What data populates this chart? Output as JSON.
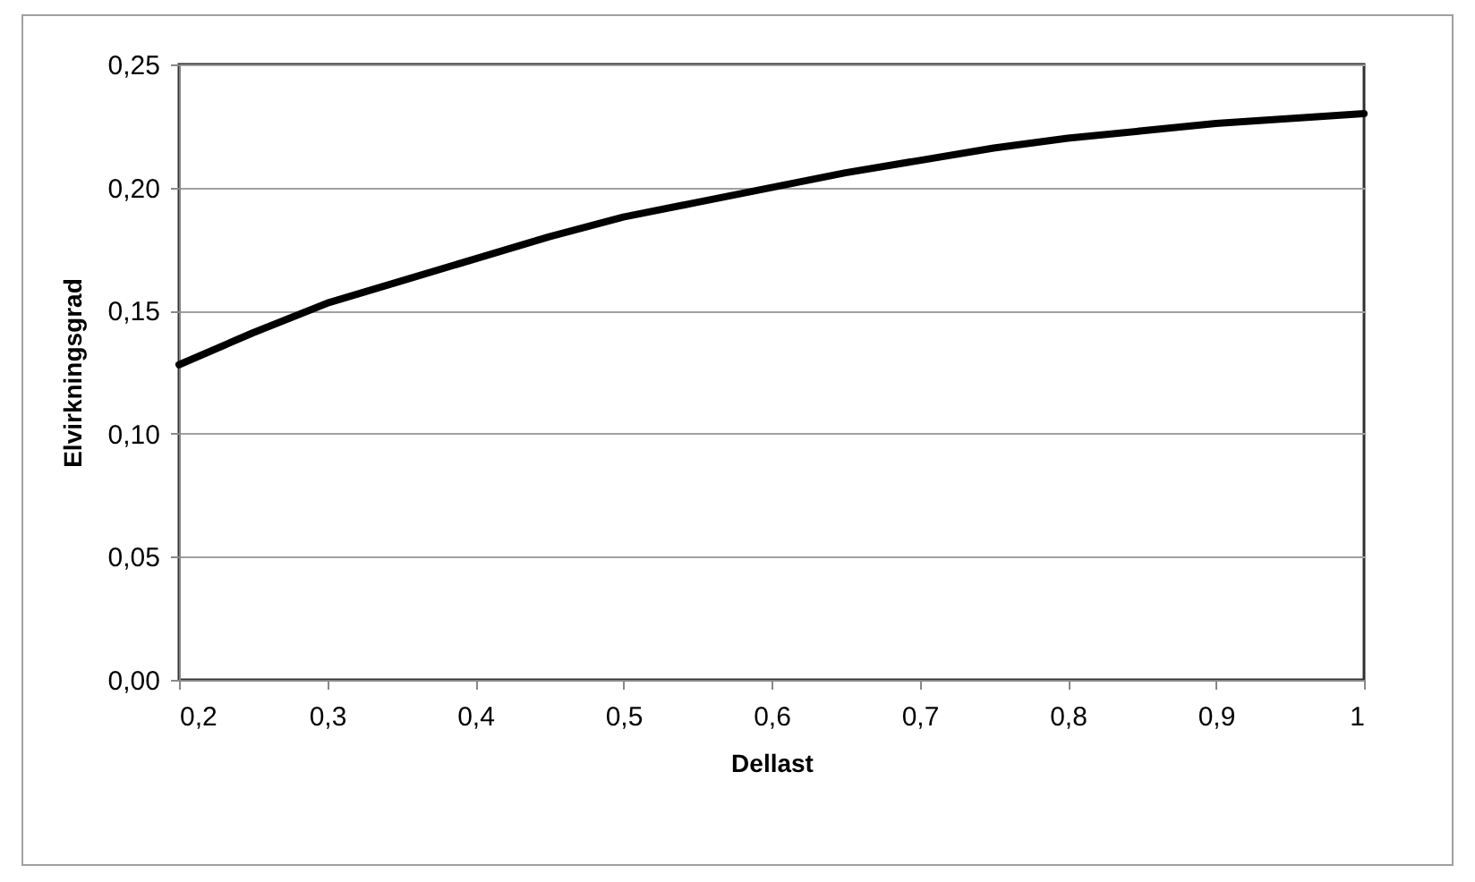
{
  "chart_data": {
    "type": "line",
    "xlabel": "Dellast",
    "ylabel": "Elvirkningsgrad",
    "x": [
      0.2,
      0.25,
      0.3,
      0.35,
      0.4,
      0.45,
      0.5,
      0.55,
      0.6,
      0.65,
      0.7,
      0.75,
      0.8,
      0.85,
      0.9,
      0.95,
      1.0
    ],
    "series": [
      {
        "color": "#000000",
        "values": [
          0.128,
          0.141,
          0.153,
          0.162,
          0.171,
          0.18,
          0.188,
          0.194,
          0.2,
          0.206,
          0.211,
          0.216,
          0.22,
          0.223,
          0.226,
          0.228,
          0.23
        ]
      }
    ],
    "xlim": [
      0.2,
      1.0
    ],
    "xticks": [
      {
        "value": 0.2,
        "label": "0,2"
      },
      {
        "value": 0.3,
        "label": "0,3"
      },
      {
        "value": 0.4,
        "label": "0,4"
      },
      {
        "value": 0.5,
        "label": "0,5"
      },
      {
        "value": 0.6,
        "label": "0,6"
      },
      {
        "value": 0.7,
        "label": "0,7"
      },
      {
        "value": 0.8,
        "label": "0,8"
      },
      {
        "value": 0.9,
        "label": "0,9"
      },
      {
        "value": 1.0,
        "label": "1"
      }
    ],
    "ylim": [
      0,
      0.25
    ],
    "yticks": [
      {
        "value": 0,
        "label": "0,00"
      },
      {
        "value": 0.05,
        "label": "0,05"
      },
      {
        "value": 0.1,
        "label": "0,10"
      },
      {
        "value": 0.15,
        "label": "0,15"
      },
      {
        "value": 0.2,
        "label": "0,20"
      },
      {
        "value": 0.25,
        "label": "0,25"
      }
    ],
    "grid": "y",
    "legend": false,
    "marker": "none",
    "line_style": "solid"
  }
}
